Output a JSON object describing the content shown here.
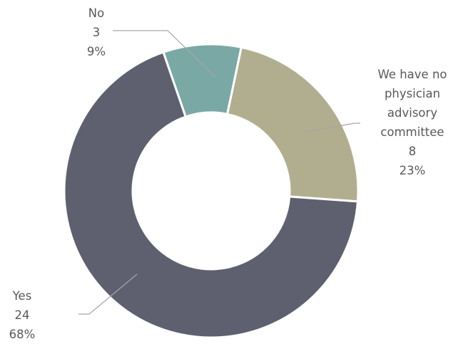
{
  "chart_data": {
    "type": "pie",
    "variant": "donut",
    "title": "",
    "slices": [
      {
        "label": "No",
        "value": 3,
        "percent": "9%",
        "color": "#7aa9a5"
      },
      {
        "label": "We have no physician advisory committee",
        "value": 8,
        "percent": "23%",
        "color": "#b1ae90"
      },
      {
        "label": "Yes",
        "value": 24,
        "percent": "68%",
        "color": "#5e6070"
      }
    ],
    "labels": {
      "no": {
        "lines": [
          "No",
          "3",
          "9%"
        ]
      },
      "committee": {
        "lines": [
          "We have no",
          "physician",
          "advisory",
          "committee",
          "8",
          "23%"
        ]
      },
      "yes": {
        "lines": [
          "Yes",
          "24",
          "68%"
        ]
      }
    },
    "legend": "none"
  }
}
